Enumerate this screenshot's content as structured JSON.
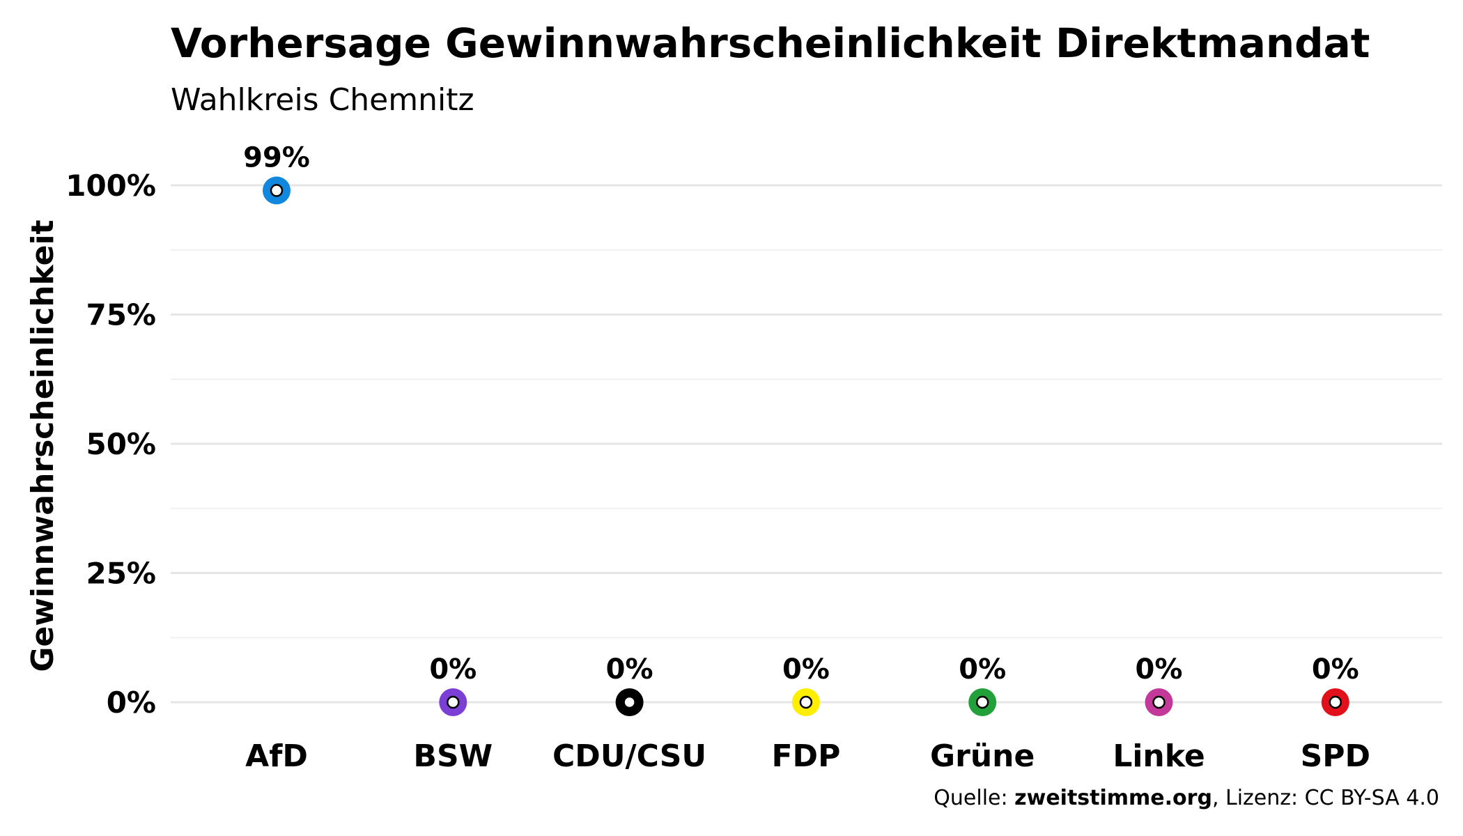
{
  "chart_data": {
    "type": "scatter",
    "title": "Vorhersage Gewinnwahrscheinlichkeit Direktmandat",
    "subtitle": "Wahlkreis Chemnitz",
    "xlabel": "",
    "ylabel": "Gewinnwahrscheinlichkeit",
    "ylim": [
      0,
      1
    ],
    "yticks": [
      "0%",
      "25%",
      "50%",
      "75%",
      "100%"
    ],
    "grid": true,
    "categories": [
      "AfD",
      "BSW",
      "CDU/CSU",
      "FDP",
      "Grüne",
      "Linke",
      "SPD"
    ],
    "values": [
      0.99,
      0,
      0,
      0,
      0,
      0,
      0
    ],
    "value_labels": [
      "99%",
      "0%",
      "0%",
      "0%",
      "0%",
      "0%",
      "0%"
    ],
    "colors": [
      "#1188dd",
      "#7b3fd6",
      "#000000",
      "#ffee00",
      "#22a03a",
      "#c2399a",
      "#e2101b"
    ]
  },
  "source": {
    "prefix": "Quelle: ",
    "site": "zweitstimme.org",
    "suffix": ", Lizenz: CC BY-SA 4.0"
  }
}
